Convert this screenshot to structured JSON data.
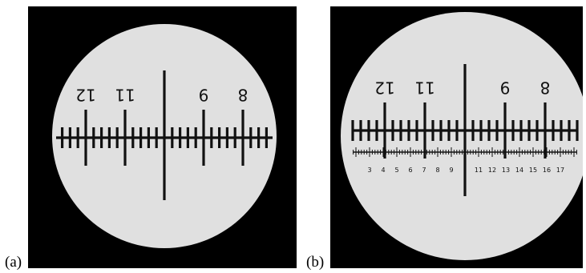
{
  "panels": [
    {
      "label": "(a)",
      "major_labels": [
        "12",
        "11",
        "9",
        "8"
      ]
    },
    {
      "label": "(b)",
      "major_labels": [
        "12",
        "11",
        "9",
        "8"
      ],
      "fine_labels": [
        "3",
        "4",
        "5",
        "6",
        "7",
        "8",
        "9",
        "11",
        "12",
        "13",
        "14",
        "15",
        "16",
        "17"
      ]
    }
  ]
}
